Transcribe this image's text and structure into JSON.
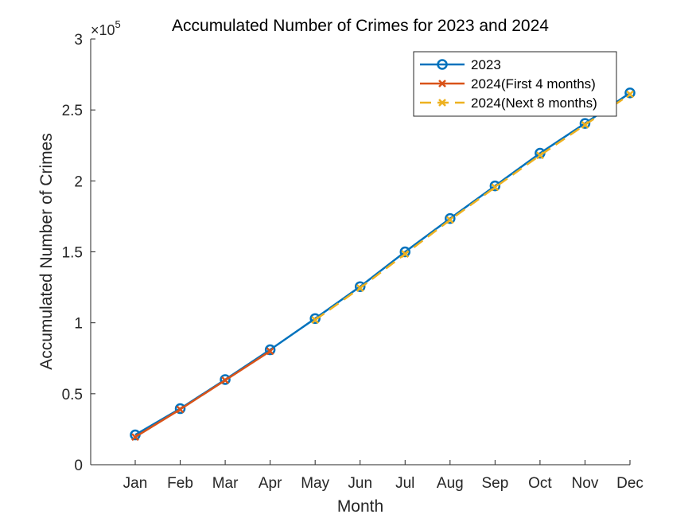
{
  "chart_data": {
    "type": "line",
    "title": "Accumulated Number of Crimes for 2023 and 2024",
    "xlabel": "Month",
    "ylabel": "Accumulated Number of Crimes",
    "categories": [
      "Jan",
      "Feb",
      "Mar",
      "Apr",
      "May",
      "Jun",
      "Jul",
      "Aug",
      "Sep",
      "Oct",
      "Nov",
      "Dec"
    ],
    "ylim": [
      0,
      300000
    ],
    "yticks": [
      0,
      50000,
      100000,
      150000,
      200000,
      250000,
      300000
    ],
    "ytick_labels": [
      "0",
      "0.5",
      "1",
      "1.5",
      "2",
      "2.5",
      "3"
    ],
    "y_exponent_label": {
      "base": "×10",
      "exp": "5"
    },
    "grid": false,
    "legend_position": "top-right",
    "series": [
      {
        "name": "2023",
        "color": "#0072BD",
        "marker": "circle",
        "dash": "solid",
        "x": [
          "Jan",
          "Feb",
          "Mar",
          "Apr",
          "May",
          "Jun",
          "Jul",
          "Aug",
          "Sep",
          "Oct",
          "Nov",
          "Dec"
        ],
        "values": [
          21000,
          39500,
          60000,
          81000,
          103000,
          125500,
          150000,
          173500,
          196500,
          219500,
          240500,
          262000
        ]
      },
      {
        "name": "2024(First 4 months)",
        "color": "#D95319",
        "marker": "x",
        "dash": "solid",
        "x": [
          "Jan",
          "Feb",
          "Mar",
          "Apr"
        ],
        "values": [
          19500,
          39000,
          59500,
          80000
        ]
      },
      {
        "name": "2024(Next 8 months)",
        "color": "#EDB120",
        "marker": "x",
        "dash": "dashed",
        "x": [
          "May",
          "Jun",
          "Jul",
          "Aug",
          "Sep",
          "Oct",
          "Nov",
          "Dec"
        ],
        "values": [
          102000,
          124500,
          148500,
          172500,
          195500,
          218000,
          239500,
          261000
        ]
      }
    ]
  }
}
